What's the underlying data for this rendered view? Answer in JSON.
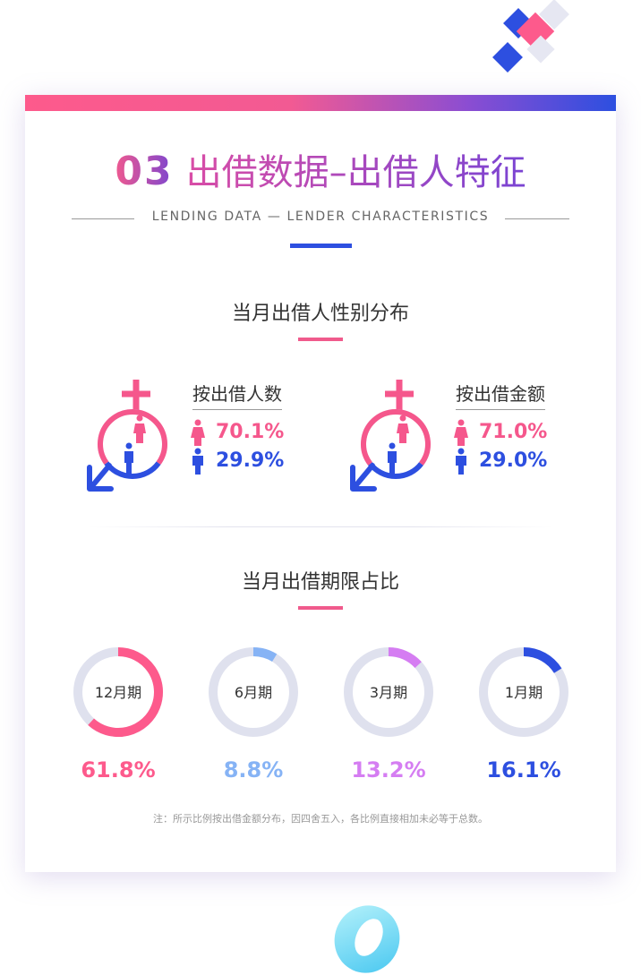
{
  "header": {
    "section_number": "03",
    "title": "出借数据–出借人特征",
    "subtitle": "LENDING DATA — LENDER CHARACTERISTICS"
  },
  "colors": {
    "female": "#f5578c",
    "male": "#2d4fe0",
    "track": "#dfe1ee"
  },
  "gender_section": {
    "title": "当月出借人性别分布",
    "groups": [
      {
        "label": "按出借人数",
        "female": "70.1%",
        "male": "29.9%"
      },
      {
        "label": "按出借金额",
        "female": "71.0%",
        "male": "29.0%"
      }
    ]
  },
  "term_section": {
    "title": "当月出借期限占比",
    "note": "注：所示比例按出借金额分布，因四舍五入，各比例直接相加未必等于总数。"
  },
  "chart_data": [
    {
      "type": "pie",
      "title": "当月出借人性别分布 - 按出借人数",
      "categories": [
        "female",
        "male"
      ],
      "values": [
        70.1,
        29.9
      ]
    },
    {
      "type": "pie",
      "title": "当月出借人性别分布 - 按出借金额",
      "categories": [
        "female",
        "male"
      ],
      "values": [
        71.0,
        29.0
      ]
    },
    {
      "type": "pie",
      "title": "当月出借期限占比",
      "categories": [
        "12月期",
        "6月期",
        "3月期",
        "1月期"
      ],
      "values": [
        61.8,
        8.8,
        13.2,
        16.1
      ],
      "value_labels": [
        "61.8%",
        "8.8%",
        "13.2%",
        "16.1%"
      ],
      "colors": [
        "#fd5a8c",
        "#86b3f5",
        "#d57df2",
        "#2d4fe0"
      ]
    }
  ]
}
